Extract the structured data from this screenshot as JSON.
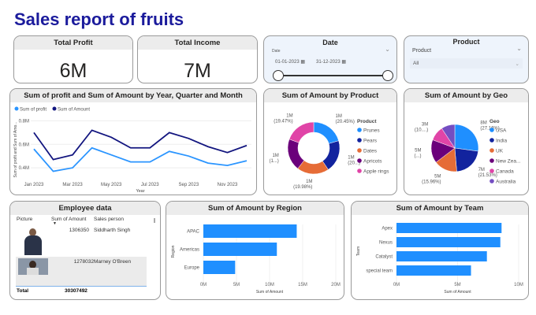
{
  "title": "Sales report of fruits",
  "kpis": [
    {
      "label": "Total Profit",
      "value": "6M"
    },
    {
      "label": "Total Income",
      "value": "7M"
    }
  ],
  "date_slicer": {
    "title": "Date",
    "field": "Date",
    "start": "01-01-2023",
    "end": "31-12-2023",
    "range_fraction": [
      0,
      1
    ]
  },
  "product_slicer": {
    "title": "Product",
    "field": "Product",
    "selected": "All"
  },
  "employee": {
    "title": "Employee data",
    "columns": [
      "Picture",
      "Sum of Amount",
      "Sales person"
    ],
    "rows": [
      {
        "amount": "1306350",
        "name": "Siddharth Singh"
      },
      {
        "amount": "1278032",
        "name": "Marney O'Breen"
      }
    ],
    "total_label": "Total",
    "total": "30307492"
  },
  "chart_data": [
    {
      "type": "line",
      "title": "Sum of profit and Sum of Amount by Year, Quarter and Month",
      "xlabel": "Year",
      "ylabel": "Sum of profit and Sum of Amo...",
      "x": [
        "Jan 2023",
        "Feb 2023",
        "Mar 2023",
        "Apr 2023",
        "May 2023",
        "Jun 2023",
        "Jul 2023",
        "Aug 2023",
        "Sep 2023",
        "Oct 2023",
        "Nov 2023",
        "Dec 2023"
      ],
      "xticks": [
        "Jan 2023",
        "Mar 2023",
        "May 2023",
        "Jul 2023",
        "Sep 2023",
        "Nov 2023"
      ],
      "yticks": [
        "0.4M",
        "0.6M",
        "0.8M"
      ],
      "ylim": [
        0.3,
        0.85
      ],
      "legend": "top-left",
      "series": [
        {
          "name": "Sum of profit",
          "color": "#2b95ff",
          "values": [
            0.56,
            0.37,
            0.4,
            0.57,
            0.51,
            0.45,
            0.45,
            0.54,
            0.5,
            0.44,
            0.42,
            0.46
          ]
        },
        {
          "name": "Sum of Amount",
          "color": "#12157f",
          "values": [
            0.7,
            0.47,
            0.51,
            0.72,
            0.66,
            0.57,
            0.57,
            0.7,
            0.65,
            0.58,
            0.53,
            0.59
          ]
        }
      ]
    },
    {
      "type": "pie",
      "donut": true,
      "title": "Sum of Amount by Product",
      "legend_title": "Product",
      "legend": "right",
      "slices": [
        {
          "name": "Prunes",
          "value": 20.45,
          "label": "1M",
          "pct": "(20.45%)",
          "color": "#1f8fff"
        },
        {
          "name": "Pears",
          "value": 20.1,
          "label": "1M",
          "pct": "(20...)",
          "color": "#12239e"
        },
        {
          "name": "Dates",
          "value": 19.98,
          "label": "1M",
          "pct": "(19.98%)",
          "color": "#e66c37"
        },
        {
          "name": "Apricots",
          "value": 20.0,
          "label": "1M",
          "pct": "(1...)",
          "color": "#6b007b"
        },
        {
          "name": "Apple rings",
          "value": 19.47,
          "label": "1M",
          "pct": "(19.47%)",
          "color": "#e044a7"
        }
      ]
    },
    {
      "type": "pie",
      "title": "Sum of Amount by Geo",
      "legend_title": "Geo",
      "legend": "right",
      "slices": [
        {
          "name": "USA",
          "value": 27.16,
          "label": "8M",
          "pct": "(27.16%)",
          "color": "#1f8fff"
        },
        {
          "name": "India",
          "value": 21.53,
          "label": "7M",
          "pct": "(21.53%)",
          "color": "#12239e"
        },
        {
          "name": "UK",
          "value": 15.96,
          "label": "5M",
          "pct": "(15.96%)",
          "color": "#e66c37"
        },
        {
          "name": "New Zea...",
          "value": 16.0,
          "label": "5M",
          "pct": "(...)",
          "color": "#6b007b"
        },
        {
          "name": "Canada",
          "value": 10.0,
          "label": "3M",
          "pct": "(10....)",
          "color": "#e044a7"
        },
        {
          "name": "Australia",
          "value": 9.35,
          "label": "",
          "pct": "",
          "color": "#744ec2"
        }
      ]
    },
    {
      "type": "bar",
      "orientation": "horizontal",
      "title": "Sum of Amount by Region",
      "xlabel": "Sum of Amount",
      "ylabel": "Region",
      "categories": [
        "APAC",
        "Americas",
        "Europe"
      ],
      "values": [
        14.1,
        11.1,
        4.8
      ],
      "xticks": [
        "0M",
        "5M",
        "10M",
        "15M",
        "20M"
      ],
      "xlim": [
        0,
        20
      ],
      "color": "#1f8fff"
    },
    {
      "type": "bar",
      "orientation": "horizontal",
      "title": "Sum of Amount by Team",
      "xlabel": "Sum of Amount",
      "ylabel": "Team",
      "categories": [
        "Apex",
        "Nexus",
        "Catalyst",
        "special team"
      ],
      "values": [
        8.6,
        8.5,
        7.4,
        6.1
      ],
      "xticks": [
        "0M",
        "5M",
        "10M"
      ],
      "xlim": [
        0,
        10
      ],
      "color": "#1f8fff"
    }
  ]
}
